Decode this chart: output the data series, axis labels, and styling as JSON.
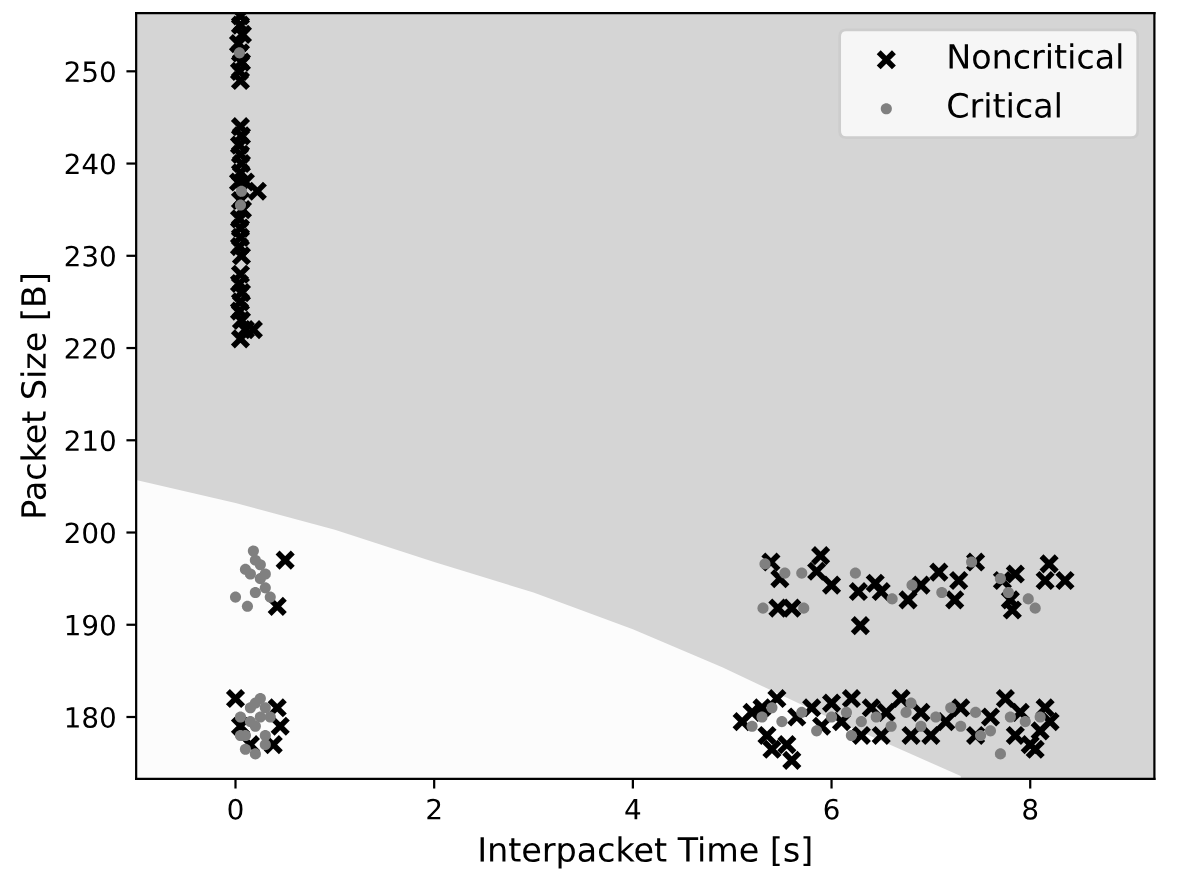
{
  "chart_data": {
    "type": "scatter",
    "xlabel": "Interpacket Time [s]",
    "ylabel": "Packet Size [B]",
    "xlim": [
      -1.0,
      9.25
    ],
    "ylim": [
      173.3,
      256.3
    ],
    "xticks": [
      0,
      2,
      4,
      6,
      8
    ],
    "yticks": [
      180,
      190,
      200,
      210,
      220,
      230,
      240,
      250
    ],
    "grid": false,
    "legend": "top right",
    "series": [
      {
        "type": "area",
        "color": "#fcfcfc",
        "x": [
          -1.0,
          0,
          1,
          2,
          3,
          4,
          4.9,
          6,
          7.3
        ],
        "values": [
          205.7,
          203.2,
          200.3,
          196.8,
          193.5,
          189.5,
          185.4,
          179.8,
          173.6
        ]
      },
      {
        "name": "Noncritical",
        "color": "#000000",
        "marker": "cross",
        "x": [
          0.05,
          0.05,
          0.07,
          0.03,
          0.05,
          0.06,
          0.04,
          0.05,
          0.05,
          0.06,
          0.04,
          0.05,
          0.06,
          0.05,
          0.03,
          0.1,
          0.22,
          0.05,
          0.07,
          0.04,
          0.05,
          0.05,
          0.04,
          0.06,
          0.05,
          0.04,
          0.06,
          0.05,
          0.04,
          0.06,
          0.1,
          0.05,
          0.18,
          0.5,
          0.42,
          0.0,
          0.42,
          0.45,
          0.38,
          0.15,
          0.05,
          5.39,
          5.89,
          5.48,
          5.85,
          6.0,
          6.27,
          6.44,
          6.5,
          6.29,
          5.46,
          5.6,
          6.77,
          6.9,
          7.08,
          7.28,
          7.24,
          7.45,
          7.72,
          7.85,
          7.8,
          7.82,
          8.19,
          8.15,
          8.35,
          5.1,
          5.2,
          5.3,
          5.45,
          5.35,
          5.4,
          5.55,
          5.6,
          5.65,
          5.8,
          5.9,
          6.0,
          6.1,
          6.2,
          6.3,
          6.4,
          6.5,
          6.55,
          6.7,
          6.8,
          6.9,
          7.0,
          7.15,
          7.3,
          7.45,
          7.6,
          7.75,
          7.85,
          7.9,
          8.0,
          8.1,
          8.15,
          8.2,
          8.05
        ],
        "values": [
          256,
          255,
          254,
          253,
          252,
          251,
          250,
          249,
          244,
          243,
          242,
          241,
          240,
          239,
          238,
          238,
          237,
          236,
          235,
          234,
          233,
          232,
          231,
          230,
          228,
          227,
          226,
          225,
          224,
          223,
          222,
          221,
          222,
          197,
          192,
          182,
          181,
          179,
          177,
          177,
          179,
          196.8,
          197.5,
          195,
          195.8,
          194.3,
          193.6,
          194.5,
          193.6,
          189.9,
          191.8,
          191.8,
          192.7,
          194.3,
          195.7,
          194.8,
          192.7,
          196.8,
          194.8,
          195.5,
          192.7,
          191.6,
          196.6,
          194.8,
          194.8,
          179.5,
          180.5,
          181,
          182,
          178,
          176.5,
          177,
          175.3,
          180,
          181,
          179,
          181.5,
          179.5,
          182,
          178,
          181,
          178,
          180.5,
          182,
          178,
          180.5,
          178,
          179.5,
          181,
          178,
          180,
          182,
          178,
          180.5,
          177,
          178.5,
          181,
          179.5,
          176.5
        ]
      },
      {
        "name": "Critical",
        "color": "#808080",
        "marker": "circle",
        "x": [
          0.06,
          0.05,
          0.04,
          0.1,
          0.2,
          0.25,
          0.3,
          0.15,
          0.0,
          0.12,
          0.35,
          0.2,
          0.25,
          0.18,
          0.3,
          0.05,
          0.1,
          0.15,
          0.2,
          0.25,
          0.3,
          0.1,
          0.2,
          0.3,
          0.15,
          0.25,
          0.35,
          0.05,
          0.2,
          0.3,
          5.33,
          5.53,
          5.7,
          5.31,
          5.72,
          6.24,
          6.61,
          6.81,
          7.11,
          7.41,
          7.78,
          7.98,
          8.05,
          7.7,
          5.2,
          5.3,
          5.5,
          5.7,
          5.85,
          6.0,
          6.15,
          6.3,
          6.45,
          6.6,
          6.75,
          6.9,
          7.05,
          7.2,
          7.3,
          7.45,
          7.6,
          7.7,
          7.8,
          7.95,
          8.1,
          5.4,
          6.2,
          6.8,
          7.5
        ],
        "values": [
          237,
          235.5,
          252,
          196,
          197,
          195,
          194,
          195.5,
          193,
          192,
          193,
          193.5,
          196.5,
          198,
          195.5,
          180,
          178,
          181,
          179,
          180,
          178,
          176.5,
          176,
          177,
          179.5,
          182,
          180,
          178,
          181.5,
          181,
          196.6,
          195.6,
          195.6,
          191.8,
          191.8,
          195.6,
          192.8,
          194.3,
          193.5,
          196.8,
          193.5,
          192.8,
          191.8,
          195,
          179,
          180,
          179.5,
          180.5,
          178.5,
          180,
          180.5,
          179.5,
          180,
          179,
          180.5,
          179,
          180,
          181,
          179,
          180.5,
          178.5,
          176,
          180,
          179.5,
          180,
          181,
          178,
          181.5,
          178
        ]
      }
    ]
  }
}
